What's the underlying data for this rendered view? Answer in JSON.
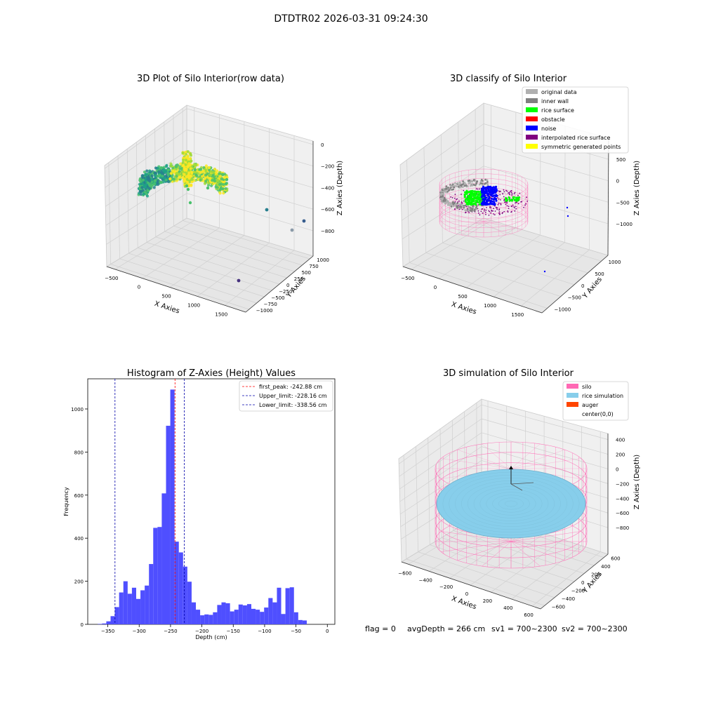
{
  "suptitle": "DTDTR02 2026-03-31 09:24:30",
  "status_line": {
    "flag": "flag = 0",
    "avg_depth": "avgDepth = 266 cm",
    "sv1": "sv1 = 700~2300",
    "sv2": "sv2 = 700~2300"
  },
  "chart_data": [
    {
      "type": "scatter",
      "dims": 3,
      "title": "3D Plot of Silo Interior(row data)",
      "xlabel": "X Axies",
      "ylabel": "Y Axies",
      "zlabel": "Z Axies (Depth)",
      "x_ticks": [
        "−500",
        "0",
        "500",
        "1000",
        "1500"
      ],
      "y_ticks": [
        "−1000",
        "−750",
        "−500",
        "−250",
        "0",
        "250",
        "500",
        "750",
        "1000"
      ],
      "z_ticks": [
        "0",
        "−200",
        "−400",
        "−600",
        "−800"
      ],
      "colormap": [
        "#fde725",
        "#a0da39",
        "#4ac16d",
        "#1fa187",
        "#277f8e",
        "#365c8d",
        "#46327e",
        "#440154"
      ],
      "clusters": [
        {
          "label": "rice surface (arc)",
          "x_range": [
            -400,
            350
          ],
          "y_range": [
            -300,
            400
          ],
          "z_range": [
            -250,
            -350
          ]
        },
        {
          "label": "outlier",
          "x": 1350,
          "y": -300,
          "z": -760
        },
        {
          "label": "outlier",
          "x": 1200,
          "y": 100,
          "z": -870
        },
        {
          "label": "outlier",
          "x": 1450,
          "y": -950,
          "z": -690
        }
      ]
    },
    {
      "type": "scatter",
      "dims": 3,
      "title": "3D classify of Silo Interior",
      "xlabel": "X Axies",
      "ylabel": "Y Axies",
      "zlabel": "Z Axies (Depth)",
      "x_ticks": [
        "−500",
        "0",
        "500",
        "1000",
        "1500"
      ],
      "y_ticks": [
        "−1000",
        "−500",
        "0",
        "500",
        "1000"
      ],
      "z_ticks": [
        "500",
        "0",
        "−500",
        "−1000"
      ],
      "legend_position": "top-right",
      "legend": [
        {
          "label": "original data",
          "color": "#b0b0b0"
        },
        {
          "label": "inner wall",
          "color": "#808080"
        },
        {
          "label": "rice surface",
          "color": "#00ff00"
        },
        {
          "label": "obstacle",
          "color": "#ff0000"
        },
        {
          "label": "noise",
          "color": "#0000ff"
        },
        {
          "label": "interpolated rice surface",
          "color": "#800080"
        },
        {
          "label": "symmetric generated points",
          "color": "#ffff00"
        }
      ],
      "wire_color": "#ff69b4"
    },
    {
      "type": "bar",
      "title": "Histogram of Z-Axies (Height) Values",
      "xlabel": "Depth (cm)",
      "ylabel": "Frequency",
      "bar_color": "#4f4fff",
      "bin_width": 6.8,
      "bin_starts": [
        -366,
        -359.2,
        -352.4,
        -345.6,
        -338.8,
        -332,
        -325.2,
        -318.4,
        -311.6,
        -304.8,
        -298,
        -291.2,
        -284.4,
        -277.6,
        -270.8,
        -264,
        -257.2,
        -250.4,
        -243.6,
        -236.8,
        -230,
        -223.2,
        -216.4,
        -209.6,
        -202.8,
        -196,
        -189.2,
        -182.4,
        -175.6,
        -168.8,
        -162,
        -155.2,
        -148.4,
        -141.6,
        -134.8,
        -128,
        -121.2,
        -114.4,
        -107.6,
        -100.8,
        -94,
        -87.2,
        -80.4,
        -73.6,
        -66.8,
        -60,
        -53.2,
        -46.4,
        -39.6,
        -32.8,
        -26,
        -19.2,
        -12.4,
        -5.6
      ],
      "values": [
        2,
        4,
        14,
        38,
        80,
        148,
        200,
        142,
        170,
        118,
        158,
        180,
        280,
        448,
        452,
        608,
        922,
        1090,
        384,
        334,
        268,
        198,
        102,
        68,
        42,
        46,
        44,
        56,
        90,
        102,
        98,
        60,
        68,
        92,
        88,
        94,
        72,
        68,
        58,
        78,
        122,
        102,
        170,
        48,
        168,
        172,
        56,
        20,
        18,
        0,
        0,
        0,
        0,
        0
      ],
      "xlim": [
        -382,
        12
      ],
      "ylim": [
        0,
        1140
      ],
      "x_ticks": [
        -350,
        -300,
        -250,
        -200,
        -150,
        -100,
        -50,
        0
      ],
      "y_ticks": [
        0,
        200,
        400,
        600,
        800,
        1000
      ],
      "legend_position": "top-right",
      "vlines": [
        {
          "label": "first_peak: -242.88 cm",
          "x": -242.88,
          "color": "#ff0000"
        },
        {
          "label": "Upper_limit: -228.16 cm",
          "x": -228.16,
          "color": "#0000aa"
        },
        {
          "label": "Lower_limit: -338.56 cm",
          "x": -338.56,
          "color": "#0000aa"
        }
      ]
    },
    {
      "type": "area",
      "dims": 3,
      "title": "3D simulation of Silo Interior",
      "xlabel": "X Axies",
      "ylabel": "Y Axies",
      "zlabel": "Z Axies (Depth)",
      "x_ticks": [
        "−600",
        "−400",
        "−200",
        "0",
        "200",
        "400",
        "600"
      ],
      "y_ticks": [
        "−600",
        "−400",
        "−200",
        "0",
        "200",
        "400",
        "600"
      ],
      "z_ticks": [
        "400",
        "200",
        "0",
        "−200",
        "−400",
        "−600",
        "−800"
      ],
      "legend_position": "top-right",
      "legend": [
        {
          "label": "silo",
          "color": "#ff69b4"
        },
        {
          "label": "rice simulation",
          "color": "#87ceeb"
        },
        {
          "label": "auger",
          "color": "#ff4500"
        },
        {
          "label": "center(0,0)",
          "color": ""
        }
      ]
    }
  ]
}
